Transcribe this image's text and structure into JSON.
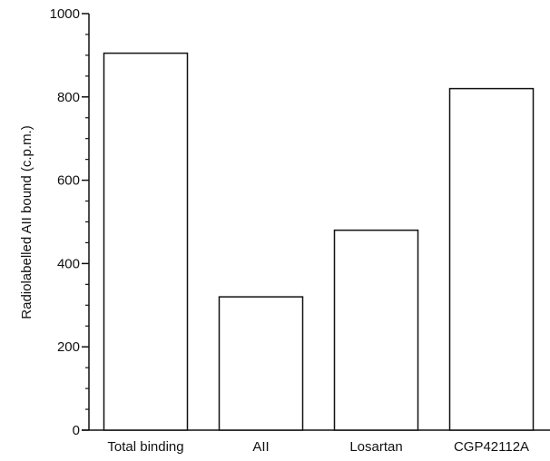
{
  "chart_data": {
    "type": "bar",
    "title": "",
    "categories": [
      "Total binding",
      "AII",
      "Losartan",
      "CGP42112A"
    ],
    "values": [
      905,
      320,
      480,
      820
    ],
    "xlabel": "",
    "ylabel": "Radiolabelled AII bound (c.p.m.)",
    "ylim": [
      0,
      1000
    ],
    "yticks": [
      0,
      200,
      400,
      600,
      800,
      1000
    ],
    "grid": false,
    "legend": "none",
    "bar_fill": "#ffffff",
    "bar_stroke": "#111111"
  }
}
